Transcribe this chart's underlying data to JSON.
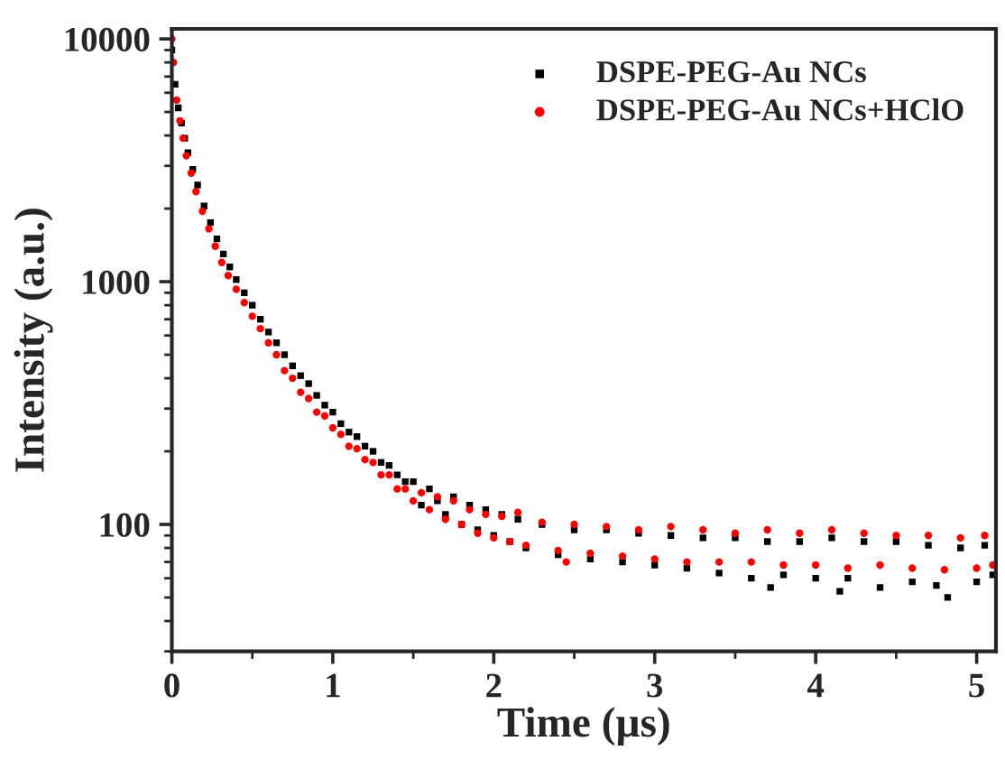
{
  "chart_data": {
    "type": "scatter",
    "xlabel": "Time (µs)",
    "ylabel": "Intensity (a.u.)",
    "log": "y",
    "xlim": [
      0,
      5.12
    ],
    "xticks": [
      0,
      1,
      2,
      3,
      4,
      5
    ],
    "ylim": [
      30,
      11000
    ],
    "yticks": [
      100,
      1000,
      10000
    ],
    "grid": false,
    "legend": "top right",
    "series": [
      {
        "name": "DSPE-PEG-Au NCs",
        "color": "#000000",
        "marker": "square",
        "x": [
          0.0,
          0.02,
          0.04,
          0.06,
          0.08,
          0.1,
          0.13,
          0.16,
          0.2,
          0.24,
          0.28,
          0.32,
          0.36,
          0.4,
          0.45,
          0.5,
          0.55,
          0.6,
          0.65,
          0.7,
          0.75,
          0.8,
          0.85,
          0.9,
          0.95,
          1.0,
          1.05,
          1.1,
          1.15,
          1.2,
          1.25,
          1.3,
          1.35,
          1.4,
          1.45,
          1.5,
          1.55,
          1.6,
          1.65,
          1.7,
          1.75,
          1.8,
          1.85,
          1.9,
          1.95,
          2.0,
          2.05,
          2.1,
          2.15,
          2.2,
          2.3,
          2.4,
          2.5,
          2.6,
          2.7,
          2.8,
          2.9,
          3.0,
          3.1,
          3.2,
          3.3,
          3.4,
          3.5,
          3.6,
          3.7,
          3.72,
          3.8,
          3.9,
          4.0,
          4.1,
          4.15,
          4.2,
          4.3,
          4.4,
          4.5,
          4.6,
          4.7,
          4.75,
          4.82,
          4.9,
          5.0,
          5.05,
          5.1
        ],
        "values": [
          9000,
          6500,
          5200,
          4500,
          3900,
          3400,
          2900,
          2500,
          2050,
          1750,
          1500,
          1300,
          1150,
          1020,
          900,
          800,
          700,
          620,
          560,
          500,
          450,
          410,
          380,
          340,
          310,
          290,
          260,
          240,
          230,
          210,
          200,
          180,
          175,
          160,
          150,
          150,
          120,
          140,
          125,
          110,
          130,
          100,
          120,
          95,
          115,
          90,
          110,
          85,
          105,
          80,
          100,
          75,
          95,
          72,
          95,
          70,
          92,
          68,
          90,
          66,
          88,
          63,
          88,
          60,
          85,
          55,
          62,
          85,
          60,
          88,
          53,
          60,
          85,
          55,
          85,
          58,
          82,
          56,
          50,
          80,
          58,
          82,
          62
        ]
      },
      {
        "name": "DSPE-PEG-Au NCs+HClO",
        "color": "#ff0000",
        "marker": "circle",
        "x": [
          0.0,
          0.01,
          0.03,
          0.05,
          0.07,
          0.09,
          0.12,
          0.15,
          0.19,
          0.23,
          0.27,
          0.31,
          0.35,
          0.4,
          0.45,
          0.5,
          0.55,
          0.6,
          0.65,
          0.7,
          0.75,
          0.8,
          0.85,
          0.9,
          0.95,
          1.0,
          1.05,
          1.1,
          1.15,
          1.2,
          1.25,
          1.3,
          1.35,
          1.4,
          1.45,
          1.5,
          1.55,
          1.6,
          1.65,
          1.7,
          1.75,
          1.8,
          1.85,
          1.9,
          1.95,
          2.0,
          2.05,
          2.1,
          2.15,
          2.2,
          2.3,
          2.4,
          2.45,
          2.5,
          2.6,
          2.7,
          2.8,
          2.9,
          3.0,
          3.1,
          3.2,
          3.3,
          3.4,
          3.5,
          3.6,
          3.7,
          3.8,
          3.9,
          4.0,
          4.1,
          4.2,
          4.3,
          4.4,
          4.5,
          4.6,
          4.7,
          4.8,
          4.9,
          5.0,
          5.05,
          5.1
        ],
        "values": [
          10000,
          8000,
          5600,
          4600,
          3900,
          3300,
          2800,
          2350,
          1950,
          1650,
          1400,
          1200,
          1060,
          930,
          820,
          720,
          640,
          560,
          500,
          430,
          400,
          350,
          330,
          290,
          280,
          250,
          235,
          210,
          205,
          185,
          180,
          160,
          160,
          140,
          140,
          125,
          135,
          115,
          130,
          105,
          125,
          100,
          115,
          92,
          110,
          88,
          108,
          85,
          112,
          82,
          102,
          78,
          70,
          100,
          76,
          98,
          74,
          95,
          72,
          98,
          70,
          95,
          70,
          92,
          70,
          95,
          68,
          92,
          68,
          95,
          66,
          92,
          68,
          90,
          66,
          90,
          65,
          88,
          66,
          90,
          68
        ]
      }
    ]
  }
}
